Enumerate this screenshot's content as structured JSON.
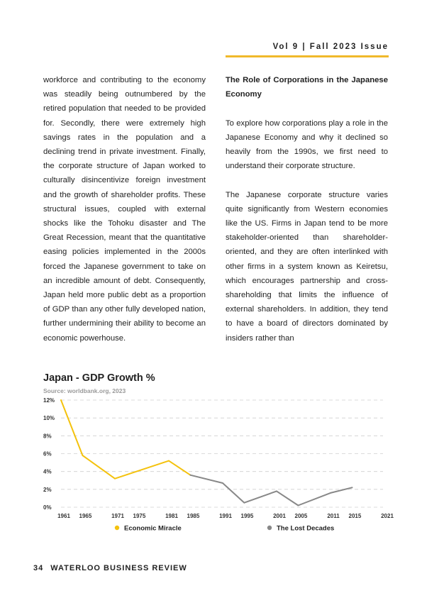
{
  "header": {
    "issue": "Vol 9 | Fall 2023 Issue"
  },
  "left_column": {
    "text": "workforce and contributing to the economy was steadily being outnumbered by the retired population that needed to be provided for. Secondly, there were extremely high savings rates in the population and a declining trend in private investment. Finally, the corporate structure of Japan worked to culturally disincentivize foreign investment and the growth of shareholder profits. These structural issues, coupled with external shocks like the Tohoku disaster and The Great Recession, meant that the quantitative easing policies implemented in the 2000s forced the Japanese government to take on an incredible amount of debt. Consequently, Japan held more public debt as a proportion of GDP than any other fully developed nation, further undermining their ability to become an economic powerhouse."
  },
  "right_column": {
    "heading": "The Role of Corporations in the Japanese Economy",
    "para1": "To explore how corporations play a role in the Japanese Economy and why it declined so heavily from the 1990s, we first need to understand their corporate structure.",
    "para2": "The Japanese corporate structure varies quite significantly from Western economies like the US. Firms in Japan tend to be more stakeholder-oriented than shareholder-oriented, and they are often interlinked with other firms in a system known as Keiretsu, which encourages partnership and cross-shareholding that limits the influence of external shareholders. In addition, they tend to have a board of directors dominated by insiders rather than"
  },
  "chart_data": {
    "type": "line",
    "title": "Japan - GDP Growth %",
    "source": "Source: worldbank.org, 2023",
    "xlabel": "",
    "ylabel": "",
    "ylim": [
      0,
      12
    ],
    "xlim": [
      1961,
      2021
    ],
    "yticks": [
      0,
      2,
      4,
      6,
      8,
      10,
      12
    ],
    "ytick_labels": [
      "0%",
      "2%",
      "4%",
      "6%",
      "8%",
      "10%",
      "12%"
    ],
    "xticks": [
      1961,
      1965,
      1971,
      1975,
      1981,
      1985,
      1991,
      1995,
      2001,
      2005,
      2011,
      2015,
      2021
    ],
    "xtick_labels": [
      "1961",
      "1965",
      "1971",
      "1975",
      "1981",
      "1985",
      "1991",
      "1995",
      "2001",
      "2005",
      "2011",
      "2015",
      "2021"
    ],
    "grid": true,
    "legend_position": "bottom",
    "series": [
      {
        "name": "Economic Miracle",
        "color": "#f4c20d",
        "points": [
          [
            1961,
            12.0
          ],
          [
            1965,
            5.8
          ],
          [
            1971,
            3.2
          ],
          [
            1981,
            5.2
          ],
          [
            1985,
            3.6
          ]
        ]
      },
      {
        "name": "The Lost Decades",
        "color": "#888888",
        "points": [
          [
            1985,
            3.6
          ],
          [
            1991,
            2.7
          ],
          [
            1995,
            0.5
          ],
          [
            2001,
            1.8
          ],
          [
            2005,
            0.2
          ],
          [
            2011,
            1.6
          ],
          [
            2015,
            2.2
          ]
        ]
      }
    ]
  },
  "footer": {
    "page_number": "34",
    "publication": "WATERLOO BUSINESS REVIEW"
  }
}
